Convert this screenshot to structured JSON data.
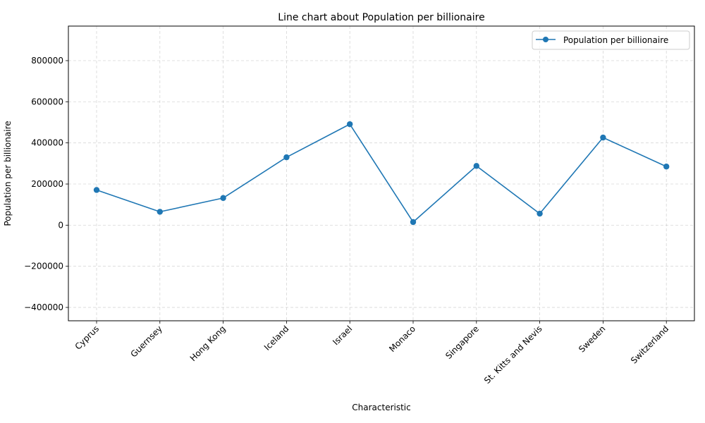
{
  "chart_data": {
    "type": "line",
    "title": "Line chart about Population per billionaire",
    "xlabel": "Characteristic",
    "ylabel": "Population per billionaire",
    "categories": [
      "Cyprus",
      "Guernsey",
      "Hong Kong",
      "Iceland",
      "Israel",
      "Monaco",
      "Singapore",
      "St. Kitts and Nevis",
      "Sweden",
      "Switzerland"
    ],
    "series": [
      {
        "name": "Population per billionaire",
        "values": [
          171000,
          65000,
          132000,
          330000,
          491000,
          15000,
          288000,
          56000,
          426000,
          285000
        ],
        "color": "#1f77b4"
      }
    ],
    "ylim": [
      -465000,
      968000
    ],
    "yticks": [
      -400000,
      -200000,
      0,
      200000,
      400000,
      600000,
      800000
    ],
    "ytick_labels": [
      "−400000",
      "−200000",
      "0",
      "200000",
      "400000",
      "600000",
      "800000"
    ],
    "grid": true,
    "legend_position": "top-right"
  }
}
